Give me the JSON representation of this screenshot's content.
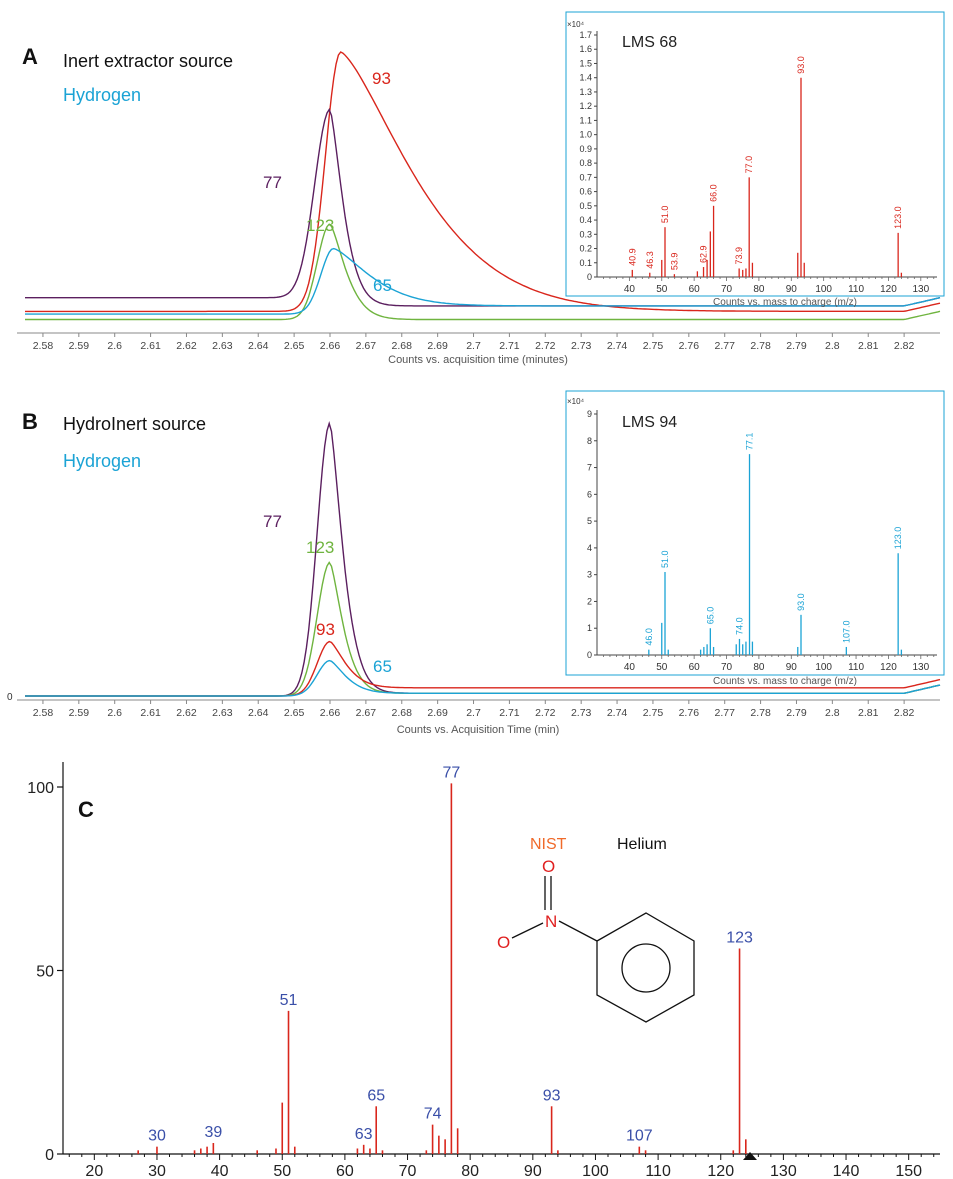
{
  "panels": {
    "A": {
      "letter": "A",
      "legend1": "Inert extractor source",
      "legend2": "Hydrogen",
      "xlabel": "Counts vs. acquisition time (minutes)",
      "ticks": [
        "2.58",
        "2.59",
        "2.6",
        "2.61",
        "2.62",
        "2.63",
        "2.64",
        "2.65",
        "2.66",
        "2.67",
        "2.68",
        "2.69",
        "2.7",
        "2.71",
        "2.72",
        "2.73",
        "2.74",
        "2.75",
        "2.76",
        "2.77",
        "2.78",
        "2.79",
        "2.8",
        "2.81",
        "2.82"
      ],
      "traces": [
        {
          "label": "93",
          "color": "#d9261c",
          "baseline": 0.05,
          "peak": 1.0,
          "peak_x": 2.663,
          "rise": 0.006,
          "fall": 0.028,
          "tail": 0.05
        },
        {
          "label": "77",
          "color": "#5b1f5f",
          "baseline": 0.1,
          "peak": 0.79,
          "peak_x": 2.66,
          "rise": 0.006,
          "fall": 0.005,
          "tail": 0.07
        },
        {
          "label": "123",
          "color": "#6fb43f",
          "baseline": 0.02,
          "peak": 0.37,
          "peak_x": 2.66,
          "rise": 0.005,
          "fall": 0.006,
          "tail": 0.02
        },
        {
          "label": "65",
          "color": "#1ba3d5",
          "baseline": 0.04,
          "peak": 0.28,
          "peak_x": 2.661,
          "rise": 0.005,
          "fall": 0.014,
          "tail": 0.07
        }
      ],
      "inset": {
        "title": "LMS 68",
        "exp": "×10⁴",
        "yticks": [
          "0",
          "0.1",
          "0.2",
          "0.3",
          "0.4",
          "0.5",
          "0.6",
          "0.7",
          "0.8",
          "0.9",
          "1.0",
          "1.1",
          "1.2",
          "1.3",
          "1.4",
          "1.5",
          "1.6",
          "1.7"
        ],
        "ymax": 1.7,
        "xticks": [
          "40",
          "50",
          "60",
          "70",
          "80",
          "90",
          "100",
          "110",
          "120",
          "130"
        ],
        "xlabel": "Counts vs. mass to charge (m/z)",
        "color": "#d9261c",
        "bars": [
          [
            40.9,
            0.05
          ],
          [
            46.3,
            0.03
          ],
          [
            50,
            0.12
          ],
          [
            51.0,
            0.35
          ],
          [
            53.9,
            0.02
          ],
          [
            61,
            0.04
          ],
          [
            62.9,
            0.07
          ],
          [
            64,
            0.12
          ],
          [
            65,
            0.32
          ],
          [
            66.0,
            0.5
          ],
          [
            73.9,
            0.06
          ],
          [
            75,
            0.05
          ],
          [
            76,
            0.06
          ],
          [
            77.0,
            0.7
          ],
          [
            78,
            0.1
          ],
          [
            92,
            0.17
          ],
          [
            93.0,
            1.4
          ],
          [
            94,
            0.1
          ],
          [
            123.0,
            0.31
          ],
          [
            124,
            0.03
          ]
        ],
        "labels": [
          [
            "40.9",
            40.9,
            0.05
          ],
          [
            "46.3",
            46.3,
            0.03
          ],
          [
            "51.0",
            51.0,
            0.35
          ],
          [
            "53.9",
            53.9,
            0.02
          ],
          [
            "62.9",
            62.9,
            0.07
          ],
          [
            "66.0",
            66.0,
            0.5
          ],
          [
            "73.9",
            73.9,
            0.06
          ],
          [
            "77.0",
            77.0,
            0.7
          ],
          [
            "93.0",
            93.0,
            1.4
          ],
          [
            "123.0",
            123.0,
            0.31
          ]
        ]
      }
    },
    "B": {
      "letter": "B",
      "legend1": "HydroInert source",
      "legend2": "Hydrogen",
      "zero": "0",
      "xlabel": "Counts vs. Acquisition Time (min)",
      "ticks": [
        "2.58",
        "2.59",
        "2.6",
        "2.61",
        "2.62",
        "2.63",
        "2.64",
        "2.65",
        "2.66",
        "2.67",
        "2.68",
        "2.69",
        "2.7",
        "2.71",
        "2.72",
        "2.73",
        "2.74",
        "2.75",
        "2.76",
        "2.77",
        "2.78",
        "2.79",
        "2.8",
        "2.81",
        "2.82"
      ],
      "traces": [
        {
          "label": "77",
          "color": "#5b1f5f",
          "baseline": 0.0,
          "peak": 1.0,
          "peak_x": 2.66,
          "rise": 0.005,
          "fall": 0.005,
          "tail": 0.01
        },
        {
          "label": "123",
          "color": "#6fb43f",
          "baseline": 0.0,
          "peak": 0.49,
          "peak_x": 2.66,
          "rise": 0.005,
          "fall": 0.005,
          "tail": 0.01
        },
        {
          "label": "93",
          "color": "#d9261c",
          "baseline": 0.0,
          "peak": 0.2,
          "peak_x": 2.66,
          "rise": 0.005,
          "fall": 0.006,
          "tail": 0.03
        },
        {
          "label": "65",
          "color": "#1ba3d5",
          "baseline": 0.0,
          "peak": 0.13,
          "peak_x": 2.66,
          "rise": 0.005,
          "fall": 0.006,
          "tail": 0.01
        }
      ],
      "inset": {
        "title": "LMS 94",
        "exp": "×10⁴",
        "yticks": [
          "0",
          "1",
          "2",
          "3",
          "4",
          "5",
          "6",
          "7",
          "8",
          "9"
        ],
        "ymax": 9,
        "xticks": [
          "40",
          "50",
          "60",
          "70",
          "80",
          "90",
          "100",
          "110",
          "120",
          "130"
        ],
        "xlabel": "Counts vs. mass to charge (m/z)",
        "color": "#1ba3d5",
        "bars": [
          [
            46.0,
            0.2
          ],
          [
            50,
            1.2
          ],
          [
            51.0,
            3.1
          ],
          [
            52,
            0.2
          ],
          [
            62,
            0.2
          ],
          [
            63,
            0.3
          ],
          [
            64,
            0.4
          ],
          [
            65.0,
            1.0
          ],
          [
            66,
            0.3
          ],
          [
            73,
            0.4
          ],
          [
            74.0,
            0.6
          ],
          [
            75,
            0.4
          ],
          [
            76,
            0.5
          ],
          [
            77.1,
            7.5
          ],
          [
            78,
            0.5
          ],
          [
            92,
            0.3
          ],
          [
            93.0,
            1.5
          ],
          [
            107.0,
            0.3
          ],
          [
            123.0,
            3.8
          ],
          [
            124,
            0.2
          ]
        ],
        "labels": [
          [
            "46.0",
            46.0,
            0.2
          ],
          [
            "51.0",
            51.0,
            3.1
          ],
          [
            "65.0",
            65.0,
            1.0
          ],
          [
            "74.0",
            74.0,
            0.6
          ],
          [
            "77.1",
            77.1,
            7.5
          ],
          [
            "93.0",
            93.0,
            1.5
          ],
          [
            "107.0",
            107.0,
            0.3
          ],
          [
            "123.0",
            123.0,
            3.8
          ]
        ]
      }
    },
    "C": {
      "letter": "C",
      "nist": "NIST",
      "helium": "Helium",
      "atom_o_top": "O",
      "atom_n": "N",
      "atom_o_left": "O",
      "yticks": [
        "0",
        "50",
        "100"
      ],
      "xticks": [
        "20",
        "30",
        "40",
        "50",
        "60",
        "70",
        "80",
        "90",
        "100",
        "110",
        "120",
        "130",
        "140",
        "150"
      ]
    }
  },
  "chart_data": [
    {
      "type": "line",
      "panel": "A",
      "title": "",
      "xlabel": "Counts vs. acquisition time (minutes)",
      "xlim": [
        2.575,
        2.83
      ],
      "series": [
        {
          "name": "93",
          "peak_x": 2.663,
          "relative_peak": 1.0
        },
        {
          "name": "77",
          "peak_x": 2.66,
          "relative_peak": 0.79
        },
        {
          "name": "123",
          "peak_x": 2.66,
          "relative_peak": 0.37
        },
        {
          "name": "65",
          "peak_x": 2.661,
          "relative_peak": 0.28
        }
      ]
    },
    {
      "type": "bar",
      "panel": "A-inset",
      "title": "LMS 68",
      "xlabel": "Counts vs. mass to charge (m/z)",
      "ylim": [
        0,
        1.7
      ],
      "x": [
        40.9,
        46.3,
        51.0,
        53.9,
        62.9,
        66.0,
        73.9,
        77.0,
        93.0,
        123.0
      ],
      "values": [
        0.05,
        0.03,
        0.35,
        0.02,
        0.07,
        0.5,
        0.06,
        0.7,
        1.4,
        0.31
      ]
    },
    {
      "type": "line",
      "panel": "B",
      "title": "",
      "xlabel": "Counts vs. Acquisition Time (min)",
      "xlim": [
        2.575,
        2.83
      ],
      "series": [
        {
          "name": "77",
          "peak_x": 2.66,
          "relative_peak": 1.0
        },
        {
          "name": "123",
          "peak_x": 2.66,
          "relative_peak": 0.49
        },
        {
          "name": "93",
          "peak_x": 2.66,
          "relative_peak": 0.2
        },
        {
          "name": "65",
          "peak_x": 2.66,
          "relative_peak": 0.13
        }
      ]
    },
    {
      "type": "bar",
      "panel": "B-inset",
      "title": "LMS 94",
      "xlabel": "Counts vs. mass to charge (m/z)",
      "ylim": [
        0,
        9
      ],
      "x": [
        46.0,
        51.0,
        65.0,
        74.0,
        77.1,
        93.0,
        107.0,
        123.0
      ],
      "values": [
        0.2,
        3.1,
        1.0,
        0.6,
        7.5,
        1.5,
        0.3,
        3.8
      ]
    },
    {
      "type": "bar",
      "panel": "C",
      "title": "",
      "xlim": [
        15,
        155
      ],
      "ylim": [
        0,
        105
      ],
      "x": [
        27,
        30,
        36,
        37,
        38,
        39,
        46,
        49,
        50,
        51,
        52,
        62,
        63,
        64,
        65,
        66,
        73,
        74,
        75,
        76,
        77,
        78,
        93,
        94,
        107,
        108,
        122,
        123,
        124
      ],
      "values": [
        1,
        2,
        1,
        1.5,
        2,
        3,
        1,
        1.5,
        14,
        39,
        2,
        1.5,
        2.5,
        1.5,
        13,
        1,
        1,
        8,
        5,
        4,
        101,
        7,
        13,
        1,
        2,
        1,
        1,
        56,
        4
      ],
      "labels": [
        [
          "30",
          30,
          2
        ],
        [
          "39",
          39,
          3
        ],
        [
          "51",
          51,
          39
        ],
        [
          "63",
          63,
          2.5
        ],
        [
          "65",
          65,
          13
        ],
        [
          "74",
          74,
          8
        ],
        [
          "77",
          77,
          101
        ],
        [
          "93",
          93,
          13
        ],
        [
          "107",
          107,
          2
        ],
        [
          "123",
          123,
          56
        ]
      ]
    }
  ]
}
